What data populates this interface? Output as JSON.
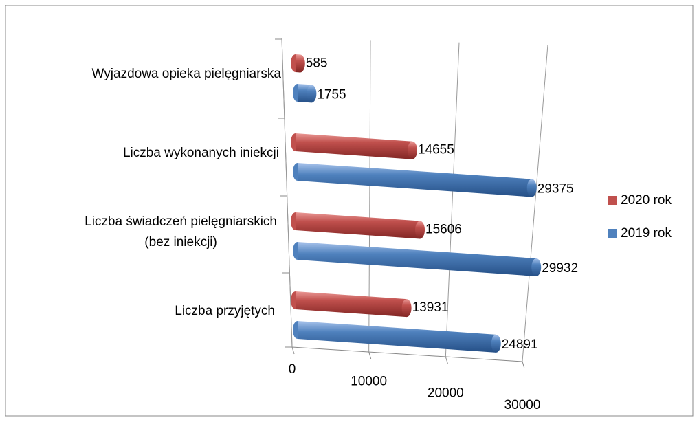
{
  "chart_data": {
    "type": "bar3d_horizontal",
    "categories": [
      "Liczba przyjętych",
      "Liczba świadczeń pielęgniarskich\n(bez iniekcji)",
      "Liczba wykonanych iniekcji",
      "Wyjazdowa opieka pielęgniarska"
    ],
    "series": [
      {
        "name": "2019 rok",
        "color": "#4f81bd",
        "values": [
          24891,
          29932,
          29375,
          1755
        ]
      },
      {
        "name": "2020 rok",
        "color": "#c0504d",
        "values": [
          13931,
          15606,
          14655,
          585
        ]
      }
    ],
    "xlim": [
      0,
      30000
    ],
    "xticks": [
      0,
      10000,
      20000,
      30000
    ],
    "grid": true,
    "legend": "right"
  }
}
